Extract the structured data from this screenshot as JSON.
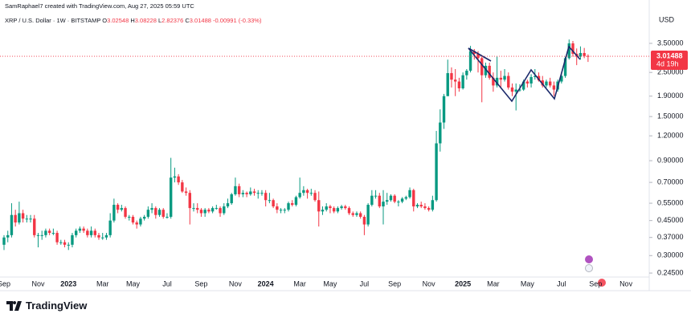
{
  "header": {
    "credit": "SamRaphael7 created with TradingView.com, Aug 27, 2025 05:59 UTC",
    "symbol": "XRP / U.S. Dollar · 1W · BITSTAMP",
    "letters": [
      "O",
      "H",
      "L",
      "C"
    ],
    "change": -0.00991,
    "change_pct": {
      "value": -0.33,
      "label": "(-0.33%)"
    }
  },
  "footer": {
    "brand": "TradingView"
  },
  "chart_data": {
    "type": "candlestick",
    "currency": "USD",
    "countdown": "4d 19h",
    "up_color": "#089981",
    "down_color": "#f23645",
    "log_scale": true,
    "grid": false,
    "ylim": [
      0.234,
      5.03
    ],
    "yticks": [
      {
        "value": 3.5,
        "label": "3.50000"
      },
      {
        "value": 2.5,
        "label": "2.50000"
      },
      {
        "value": 1.9,
        "label": "1.90000"
      },
      {
        "value": 1.5,
        "label": "1.50000"
      },
      {
        "value": 1.2,
        "label": "1.20000"
      },
      {
        "value": 0.9,
        "label": "0.90000"
      },
      {
        "value": 0.7,
        "label": "0.70000"
      },
      {
        "value": 0.55,
        "label": "0.55000"
      },
      {
        "value": 0.45,
        "label": "0.45000"
      },
      {
        "value": 0.37,
        "label": "0.37000"
      },
      {
        "value": 0.3,
        "label": "0.30000"
      },
      {
        "value": 0.245,
        "label": "0.24500"
      }
    ],
    "categories": [
      "Sep",
      null,
      null,
      null,
      null,
      null,
      null,
      null,
      null,
      "Nov",
      null,
      null,
      null,
      null,
      null,
      null,
      null,
      "2023",
      null,
      null,
      null,
      null,
      null,
      null,
      null,
      null,
      "Mar",
      null,
      null,
      null,
      null,
      null,
      null,
      null,
      "May",
      null,
      null,
      null,
      null,
      null,
      null,
      null,
      null,
      "Jul",
      null,
      null,
      null,
      null,
      null,
      null,
      null,
      null,
      "Sep",
      null,
      null,
      null,
      null,
      null,
      null,
      null,
      null,
      "Nov",
      null,
      null,
      null,
      null,
      null,
      null,
      null,
      "2024",
      null,
      null,
      null,
      null,
      null,
      null,
      null,
      null,
      "Mar",
      null,
      null,
      null,
      null,
      null,
      null,
      null,
      "May",
      null,
      null,
      null,
      null,
      null,
      null,
      null,
      null,
      "Jul",
      null,
      null,
      null,
      null,
      null,
      null,
      null,
      "Sep",
      null,
      null,
      null,
      null,
      null,
      null,
      null,
      null,
      "Nov",
      null,
      null,
      null,
      null,
      null,
      null,
      null,
      null,
      "2025",
      null,
      null,
      null,
      null,
      null,
      null,
      null,
      "Mar",
      null,
      null,
      null,
      null,
      null,
      null,
      null,
      null,
      "May",
      null,
      null,
      null,
      null,
      null,
      null,
      null,
      null,
      "Jul",
      null,
      null,
      null,
      null,
      null,
      null,
      null,
      null,
      "Sep",
      null,
      null,
      null,
      null,
      null,
      null,
      null,
      "Nov"
    ],
    "ohlc": [
      [
        0.34,
        0.38,
        0.32,
        0.37
      ],
      [
        0.37,
        0.4,
        0.35,
        0.38
      ],
      [
        0.38,
        0.55,
        0.37,
        0.48
      ],
      [
        0.48,
        0.51,
        0.42,
        0.44
      ],
      [
        0.44,
        0.56,
        0.43,
        0.49
      ],
      [
        0.49,
        0.51,
        0.44,
        0.46
      ],
      [
        0.46,
        0.48,
        0.44,
        0.46
      ],
      [
        0.46,
        0.48,
        0.44,
        0.46
      ],
      [
        0.46,
        0.48,
        0.37,
        0.38
      ],
      [
        0.38,
        0.39,
        0.33,
        0.38
      ],
      [
        0.38,
        0.4,
        0.36,
        0.38
      ],
      [
        0.38,
        0.41,
        0.37,
        0.4
      ],
      [
        0.4,
        0.41,
        0.38,
        0.39
      ],
      [
        0.39,
        0.41,
        0.38,
        0.39
      ],
      [
        0.39,
        0.4,
        0.34,
        0.35
      ],
      [
        0.35,
        0.36,
        0.34,
        0.35
      ],
      [
        0.35,
        0.36,
        0.33,
        0.34
      ],
      [
        0.34,
        0.35,
        0.32,
        0.34
      ],
      [
        0.34,
        0.39,
        0.33,
        0.38
      ],
      [
        0.38,
        0.41,
        0.37,
        0.4
      ],
      [
        0.4,
        0.42,
        0.39,
        0.41
      ],
      [
        0.41,
        0.42,
        0.39,
        0.4
      ],
      [
        0.4,
        0.41,
        0.37,
        0.38
      ],
      [
        0.38,
        0.42,
        0.37,
        0.4
      ],
      [
        0.4,
        0.41,
        0.37,
        0.38
      ],
      [
        0.38,
        0.39,
        0.36,
        0.37
      ],
      [
        0.37,
        0.39,
        0.36,
        0.37
      ],
      [
        0.37,
        0.39,
        0.36,
        0.38
      ],
      [
        0.38,
        0.49,
        0.37,
        0.45
      ],
      [
        0.45,
        0.58,
        0.44,
        0.54
      ],
      [
        0.54,
        0.55,
        0.49,
        0.51
      ],
      [
        0.51,
        0.54,
        0.5,
        0.52
      ],
      [
        0.52,
        0.53,
        0.46,
        0.47
      ],
      [
        0.47,
        0.48,
        0.45,
        0.47
      ],
      [
        0.47,
        0.48,
        0.43,
        0.44
      ],
      [
        0.44,
        0.45,
        0.41,
        0.43
      ],
      [
        0.43,
        0.47,
        0.42,
        0.46
      ],
      [
        0.46,
        0.48,
        0.45,
        0.47
      ],
      [
        0.47,
        0.53,
        0.46,
        0.51
      ],
      [
        0.51,
        0.55,
        0.49,
        0.52
      ],
      [
        0.52,
        0.53,
        0.46,
        0.48
      ],
      [
        0.48,
        0.52,
        0.47,
        0.51
      ],
      [
        0.51,
        0.52,
        0.46,
        0.47
      ],
      [
        0.47,
        0.49,
        0.46,
        0.47
      ],
      [
        0.47,
        0.93,
        0.46,
        0.74
      ],
      [
        0.74,
        0.83,
        0.7,
        0.75
      ],
      [
        0.75,
        0.77,
        0.68,
        0.7
      ],
      [
        0.7,
        0.72,
        0.62,
        0.63
      ],
      [
        0.63,
        0.66,
        0.6,
        0.62
      ],
      [
        0.62,
        0.64,
        0.43,
        0.52
      ],
      [
        0.52,
        0.55,
        0.5,
        0.52
      ],
      [
        0.52,
        0.55,
        0.49,
        0.51
      ],
      [
        0.51,
        0.52,
        0.47,
        0.49
      ],
      [
        0.49,
        0.52,
        0.47,
        0.51
      ],
      [
        0.51,
        0.52,
        0.49,
        0.5
      ],
      [
        0.5,
        0.53,
        0.49,
        0.52
      ],
      [
        0.52,
        0.54,
        0.51,
        0.52
      ],
      [
        0.52,
        0.53,
        0.47,
        0.49
      ],
      [
        0.49,
        0.55,
        0.48,
        0.53
      ],
      [
        0.53,
        0.58,
        0.52,
        0.55
      ],
      [
        0.55,
        0.62,
        0.54,
        0.61
      ],
      [
        0.61,
        0.74,
        0.6,
        0.67
      ],
      [
        0.67,
        0.69,
        0.59,
        0.61
      ],
      [
        0.61,
        0.64,
        0.59,
        0.62
      ],
      [
        0.62,
        0.63,
        0.59,
        0.61
      ],
      [
        0.61,
        0.66,
        0.6,
        0.63
      ],
      [
        0.63,
        0.65,
        0.6,
        0.62
      ],
      [
        0.62,
        0.64,
        0.58,
        0.62
      ],
      [
        0.62,
        0.64,
        0.6,
        0.62
      ],
      [
        0.62,
        0.64,
        0.53,
        0.57
      ],
      [
        0.57,
        0.62,
        0.55,
        0.57
      ],
      [
        0.57,
        0.58,
        0.52,
        0.53
      ],
      [
        0.53,
        0.55,
        0.49,
        0.51
      ],
      [
        0.51,
        0.52,
        0.49,
        0.51
      ],
      [
        0.51,
        0.52,
        0.49,
        0.51
      ],
      [
        0.51,
        0.56,
        0.5,
        0.55
      ],
      [
        0.55,
        0.57,
        0.53,
        0.54
      ],
      [
        0.54,
        0.6,
        0.53,
        0.59
      ],
      [
        0.59,
        0.74,
        0.58,
        0.62
      ],
      [
        0.62,
        0.67,
        0.6,
        0.64
      ],
      [
        0.64,
        0.65,
        0.58,
        0.62
      ],
      [
        0.62,
        0.65,
        0.6,
        0.62
      ],
      [
        0.62,
        0.64,
        0.56,
        0.57
      ],
      [
        0.57,
        0.63,
        0.42,
        0.5
      ],
      [
        0.5,
        0.53,
        0.48,
        0.51
      ],
      [
        0.51,
        0.55,
        0.5,
        0.53
      ],
      [
        0.53,
        0.54,
        0.49,
        0.52
      ],
      [
        0.52,
        0.53,
        0.49,
        0.5
      ],
      [
        0.5,
        0.53,
        0.49,
        0.52
      ],
      [
        0.52,
        0.54,
        0.51,
        0.53
      ],
      [
        0.53,
        0.54,
        0.51,
        0.52
      ],
      [
        0.52,
        0.53,
        0.48,
        0.49
      ],
      [
        0.49,
        0.5,
        0.47,
        0.48
      ],
      [
        0.48,
        0.5,
        0.47,
        0.49
      ],
      [
        0.49,
        0.5,
        0.46,
        0.47
      ],
      [
        0.47,
        0.48,
        0.38,
        0.43
      ],
      [
        0.43,
        0.55,
        0.42,
        0.54
      ],
      [
        0.54,
        0.64,
        0.53,
        0.6
      ],
      [
        0.6,
        0.64,
        0.58,
        0.6
      ],
      [
        0.6,
        0.62,
        0.52,
        0.53
      ],
      [
        0.53,
        0.64,
        0.43,
        0.56
      ],
      [
        0.56,
        0.62,
        0.54,
        0.57
      ],
      [
        0.57,
        0.61,
        0.56,
        0.6
      ],
      [
        0.6,
        0.61,
        0.55,
        0.56
      ],
      [
        0.56,
        0.57,
        0.53,
        0.56
      ],
      [
        0.56,
        0.59,
        0.55,
        0.58
      ],
      [
        0.58,
        0.6,
        0.57,
        0.59
      ],
      [
        0.59,
        0.66,
        0.58,
        0.64
      ],
      [
        0.64,
        0.65,
        0.5,
        0.53
      ],
      [
        0.53,
        0.55,
        0.52,
        0.54
      ],
      [
        0.54,
        0.56,
        0.52,
        0.53
      ],
      [
        0.53,
        0.55,
        0.51,
        0.52
      ],
      [
        0.52,
        0.53,
        0.5,
        0.51
      ],
      [
        0.51,
        0.6,
        0.5,
        0.57
      ],
      [
        0.57,
        1.27,
        0.56,
        1.1
      ],
      [
        1.1,
        1.63,
        1.0,
        1.4
      ],
      [
        1.4,
        1.95,
        1.3,
        1.9
      ],
      [
        1.9,
        2.9,
        1.9,
        2.48
      ],
      [
        2.48,
        2.65,
        2.1,
        2.3
      ],
      [
        2.3,
        2.6,
        1.9,
        2.25
      ],
      [
        2.25,
        2.35,
        2.0,
        2.08
      ],
      [
        2.08,
        2.5,
        2.05,
        2.42
      ],
      [
        2.42,
        2.6,
        2.3,
        2.55
      ],
      [
        2.55,
        3.4,
        2.5,
        3.2
      ],
      [
        3.2,
        3.28,
        2.9,
        3.1
      ],
      [
        3.1,
        3.2,
        2.5,
        2.95
      ],
      [
        2.95,
        3.0,
        1.77,
        2.42
      ],
      [
        2.42,
        2.8,
        2.35,
        2.7
      ],
      [
        2.7,
        2.8,
        2.3,
        2.35
      ],
      [
        2.35,
        2.5,
        2.0,
        2.15
      ],
      [
        2.15,
        3.0,
        2.1,
        2.35
      ],
      [
        2.35,
        2.55,
        2.1,
        2.3
      ],
      [
        2.3,
        2.6,
        2.25,
        2.4
      ],
      [
        2.4,
        2.5,
        2.05,
        2.1
      ],
      [
        2.1,
        2.2,
        1.9,
        2.0
      ],
      [
        2.0,
        2.2,
        1.61,
        2.05
      ],
      [
        2.05,
        2.18,
        2.0,
        2.05
      ],
      [
        2.05,
        2.3,
        2.02,
        2.25
      ],
      [
        2.25,
        2.3,
        2.1,
        2.2
      ],
      [
        2.2,
        2.45,
        2.1,
        2.37
      ],
      [
        2.37,
        2.6,
        2.3,
        2.4
      ],
      [
        2.4,
        2.5,
        2.25,
        2.28
      ],
      [
        2.28,
        2.4,
        2.1,
        2.15
      ],
      [
        2.15,
        2.3,
        2.1,
        2.25
      ],
      [
        2.25,
        2.35,
        2.1,
        2.15
      ],
      [
        2.15,
        2.25,
        1.9,
        2.05
      ],
      [
        2.05,
        2.3,
        2.0,
        2.25
      ],
      [
        2.25,
        2.45,
        2.2,
        2.4
      ],
      [
        2.4,
        3.0,
        2.35,
        2.95
      ],
      [
        2.95,
        3.66,
        2.9,
        3.5
      ],
      [
        3.5,
        3.6,
        3.0,
        3.1
      ],
      [
        3.1,
        3.3,
        2.72,
        3.0
      ],
      [
        3.0,
        3.38,
        2.9,
        3.13
      ],
      [
        3.13,
        3.32,
        2.95,
        3.02548
      ],
      [
        3.02548,
        3.08228,
        2.82376,
        3.01488
      ],
      null,
      null,
      null,
      null,
      null,
      null,
      null,
      null,
      null,
      null
    ]
  }
}
